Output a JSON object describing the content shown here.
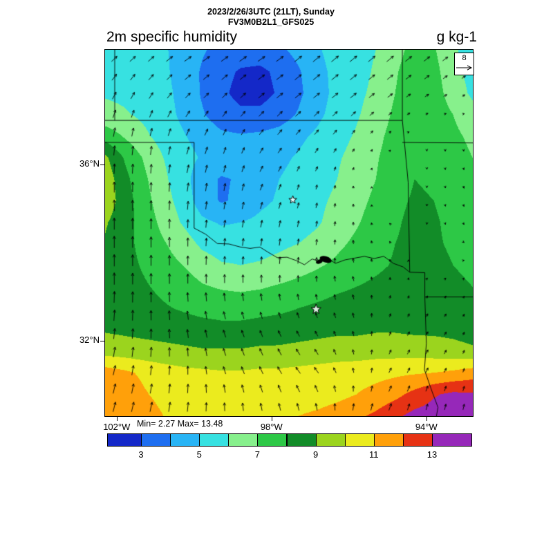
{
  "header": {
    "datetime_line": "2023/2/26/3UTC (21LT), Sunday",
    "model_line": "FV3M0B2L1_GFS025"
  },
  "titles": {
    "variable": "2m specific humidity",
    "units": "g kg-1"
  },
  "stats": {
    "minmax": "Min= 2.27 Max= 13.48",
    "min": 2.27,
    "max": 13.48
  },
  "reference_vector": {
    "label": "8"
  },
  "axes": {
    "lat_labels": [
      {
        "text": "36°N",
        "lat": 36
      },
      {
        "text": "32°N",
        "lat": 32
      }
    ],
    "lon_labels": [
      {
        "text": "102°W",
        "lon": -102
      },
      {
        "text": "98°W",
        "lon": -98
      },
      {
        "text": "94°W",
        "lon": -94
      }
    ]
  },
  "colorbar": {
    "tick_labels": [
      3,
      5,
      7,
      9,
      11,
      13
    ]
  },
  "chart_data": {
    "type": "heatmap",
    "title": "2m specific humidity",
    "units": "g kg-1",
    "valid_time": "2023/2/26/3UTC (21LT), Sunday",
    "model": "FV3M0B2L1_GFS025",
    "min": 2.27,
    "max": 13.48,
    "lon_range": [
      -102.3,
      -92.8
    ],
    "lat_range": [
      30.3,
      38.6
    ],
    "contour_levels": [
      3,
      4,
      5,
      6,
      7,
      8,
      9,
      10,
      11,
      12,
      13
    ],
    "palette": [
      "#1428C8",
      "#1E6EF0",
      "#28B4F5",
      "#37E1E1",
      "#87F08C",
      "#2DC846",
      "#128C28",
      "#9BD41E",
      "#EBEB1E",
      "#FFA00A",
      "#E63214",
      "#9628B9"
    ],
    "humidity_grid": {
      "nx": 20,
      "ny": 18,
      "lon_order": "west_to_east",
      "lat_order": "north_to_south",
      "values": [
        [
          5.5,
          5.5,
          5.4,
          5.1,
          4.7,
          4.1,
          3.7,
          3.5,
          3.5,
          3.8,
          4.3,
          4.9,
          5.4,
          5.7,
          6.0,
          6.7,
          7.3,
          7.1,
          6.2,
          5.4
        ],
        [
          5.7,
          5.6,
          5.5,
          5.2,
          4.6,
          3.9,
          3.3,
          2.9,
          2.8,
          3.2,
          3.9,
          4.7,
          5.3,
          5.7,
          6.1,
          6.9,
          7.5,
          7.3,
          6.4,
          5.6
        ],
        [
          5.9,
          5.8,
          5.6,
          5.3,
          4.7,
          3.9,
          3.2,
          2.7,
          2.7,
          3.1,
          3.8,
          4.6,
          5.3,
          5.8,
          6.2,
          7.0,
          7.6,
          7.4,
          6.6,
          5.8
        ],
        [
          6.3,
          6.1,
          5.8,
          5.4,
          4.8,
          4.1,
          3.5,
          3.2,
          3.2,
          3.5,
          4.1,
          4.8,
          5.4,
          5.9,
          6.4,
          7.2,
          7.7,
          7.5,
          7.0,
          6.4
        ],
        [
          7.6,
          6.9,
          6.2,
          5.6,
          5.1,
          4.6,
          4.2,
          4.1,
          4.2,
          4.4,
          4.8,
          5.2,
          5.7,
          6.1,
          6.7,
          7.4,
          7.8,
          7.6,
          7.2,
          6.8
        ],
        [
          9.2,
          7.9,
          6.9,
          6.0,
          5.4,
          4.9,
          4.6,
          4.5,
          4.6,
          4.8,
          5.1,
          5.5,
          5.9,
          6.3,
          6.9,
          7.5,
          7.9,
          7.8,
          7.4,
          7.0
        ],
        [
          9.6,
          8.3,
          7.2,
          6.2,
          5.4,
          4.4,
          3.9,
          4.1,
          4.7,
          5.0,
          5.3,
          5.6,
          6.0,
          6.5,
          7.0,
          7.6,
          8.0,
          7.9,
          7.5,
          7.2
        ],
        [
          9.6,
          8.5,
          7.4,
          6.4,
          5.6,
          4.5,
          3.9,
          4.2,
          4.8,
          5.1,
          5.4,
          5.8,
          6.2,
          6.7,
          7.2,
          7.8,
          8.1,
          8.0,
          7.7,
          7.4
        ],
        [
          9.1,
          8.4,
          7.6,
          6.7,
          5.9,
          5.2,
          4.9,
          5.0,
          5.2,
          5.4,
          5.6,
          5.9,
          6.4,
          6.9,
          7.4,
          7.9,
          8.2,
          8.1,
          7.8,
          7.5
        ],
        [
          8.9,
          8.3,
          7.7,
          7.1,
          6.5,
          5.8,
          5.5,
          5.5,
          5.6,
          5.8,
          6.0,
          6.3,
          6.8,
          7.2,
          7.6,
          8.0,
          8.2,
          8.1,
          7.9,
          7.6
        ],
        [
          8.7,
          8.3,
          7.9,
          7.4,
          7.0,
          6.5,
          6.1,
          6.0,
          6.1,
          6.3,
          6.6,
          6.9,
          7.2,
          7.5,
          7.8,
          8.1,
          8.3,
          8.2,
          8.0,
          7.8
        ],
        [
          8.6,
          8.3,
          8.1,
          7.8,
          7.5,
          7.1,
          6.9,
          6.8,
          6.9,
          7.1,
          7.3,
          7.5,
          7.8,
          8.0,
          8.2,
          8.4,
          8.5,
          8.4,
          8.2,
          8.0
        ],
        [
          8.7,
          8.5,
          8.3,
          8.1,
          7.9,
          7.7,
          7.6,
          7.6,
          7.7,
          7.8,
          8.0,
          8.2,
          8.4,
          8.5,
          8.6,
          8.7,
          8.7,
          8.6,
          8.5,
          8.3
        ],
        [
          8.9,
          8.8,
          8.7,
          8.6,
          8.5,
          8.4,
          8.3,
          8.3,
          8.4,
          8.5,
          8.6,
          8.7,
          8.8,
          8.8,
          8.9,
          8.9,
          8.8,
          8.8,
          8.7,
          8.5
        ],
        [
          9.6,
          9.5,
          9.4,
          9.3,
          9.2,
          9.1,
          9.1,
          9.1,
          9.2,
          9.2,
          9.3,
          9.4,
          9.5,
          9.5,
          9.6,
          9.6,
          9.6,
          9.5,
          9.4,
          9.2
        ],
        [
          11.5,
          11.2,
          10.8,
          10.5,
          10.3,
          10.2,
          10.1,
          10.1,
          10.2,
          10.2,
          10.3,
          10.4,
          10.5,
          10.6,
          10.7,
          10.8,
          10.9,
          11.0,
          11.2,
          11.5
        ],
        [
          12.0,
          11.7,
          11.1,
          10.7,
          10.4,
          10.2,
          10.1,
          10.1,
          10.2,
          10.3,
          10.4,
          10.5,
          10.7,
          11.0,
          11.3,
          11.7,
          12.3,
          12.9,
          13.2,
          13.1
        ],
        [
          11.8,
          12.0,
          11.5,
          11.0,
          10.8,
          10.7,
          10.6,
          10.7,
          10.8,
          10.9,
          11.0,
          11.2,
          11.5,
          11.8,
          12.2,
          12.8,
          13.3,
          13.45,
          13.45,
          13.4
        ]
      ]
    },
    "wind": {
      "reference": 8,
      "nx": 10,
      "ny": 9,
      "u": [
        [
          2.5,
          2.5,
          3,
          3,
          3,
          3,
          3,
          3,
          2.5,
          2
        ],
        [
          1.5,
          1.5,
          2,
          2,
          2.5,
          2.5,
          2.5,
          2,
          1.5,
          1
        ],
        [
          0.5,
          0.5,
          1,
          1,
          1.5,
          1.5,
          1,
          0.5,
          0,
          0
        ],
        [
          0,
          0,
          0.5,
          0.5,
          1,
          0.5,
          0,
          0,
          0,
          0.5
        ],
        [
          0,
          0,
          0,
          0.5,
          0.5,
          0.5,
          0,
          -0.5,
          0,
          0.5
        ],
        [
          0,
          0,
          0,
          0,
          0,
          0,
          -0.5,
          0,
          0.5,
          0.5
        ],
        [
          0.5,
          0,
          -0.5,
          -1,
          -1,
          -1,
          -0.5,
          0.5,
          1,
          0.5
        ],
        [
          1,
          0.5,
          0,
          -1,
          -1.5,
          -2,
          -0.5,
          1,
          1,
          0.5
        ],
        [
          1,
          1,
          0.5,
          0,
          -0.5,
          -0.5,
          0.5,
          1,
          0.5,
          0.5
        ]
      ],
      "v": [
        [
          2,
          2,
          2,
          2,
          2,
          2.5,
          2.5,
          2.5,
          2,
          1.5
        ],
        [
          3,
          2.5,
          2,
          2,
          2,
          2,
          2,
          1.5,
          1,
          0.5
        ],
        [
          4,
          3.5,
          3,
          2.5,
          2,
          2,
          1.5,
          0.5,
          -0.5,
          -0.5
        ],
        [
          4.5,
          4,
          3.5,
          3,
          2.5,
          2,
          1,
          0,
          -0.5,
          -1
        ],
        [
          5,
          4.5,
          3.5,
          3,
          3,
          2.5,
          1.5,
          0.5,
          -0.5,
          -0.5
        ],
        [
          5,
          4.5,
          4,
          3.5,
          3,
          2.5,
          2,
          1,
          0.5,
          0.5
        ],
        [
          4.5,
          4,
          3.5,
          3,
          2.5,
          2,
          2,
          1.5,
          1.5,
          1
        ],
        [
          4,
          4,
          3.5,
          3,
          3,
          2.5,
          2,
          2,
          2,
          1.5
        ],
        [
          4,
          4,
          4,
          3.5,
          3,
          3,
          3,
          3,
          2.5,
          2.5
        ]
      ]
    },
    "borders": [
      {
        "points": [
          [
            -102.3,
            37
          ],
          [
            -94.62,
            37
          ]
        ]
      },
      {
        "points": [
          [
            -102.05,
            38.6
          ],
          [
            -102.05,
            37
          ]
        ]
      },
      {
        "points": [
          [
            -102.3,
            36.5
          ],
          [
            -100.0,
            36.5
          ]
        ]
      },
      {
        "points": [
          [
            -100.0,
            36.5
          ],
          [
            -100.0,
            34.56
          ]
        ]
      },
      {
        "points": [
          [
            -100.0,
            34.56
          ],
          [
            -99.7,
            34.42
          ],
          [
            -99.4,
            34.21
          ],
          [
            -99.1,
            34.2
          ],
          [
            -98.8,
            34.13
          ],
          [
            -98.55,
            34.1
          ],
          [
            -98.3,
            34.13
          ],
          [
            -98.1,
            34.02
          ],
          [
            -97.85,
            33.89
          ],
          [
            -97.6,
            33.9
          ],
          [
            -97.35,
            33.82
          ],
          [
            -97.15,
            33.73
          ],
          [
            -96.95,
            33.86
          ],
          [
            -96.75,
            33.8
          ],
          [
            -96.55,
            33.88
          ],
          [
            -96.35,
            33.76
          ],
          [
            -96.1,
            33.84
          ],
          [
            -95.85,
            33.88
          ],
          [
            -95.6,
            33.92
          ],
          [
            -95.35,
            33.87
          ],
          [
            -95.1,
            33.92
          ],
          [
            -94.85,
            33.76
          ],
          [
            -94.6,
            33.68
          ],
          [
            -94.43,
            33.56
          ]
        ]
      },
      {
        "points": [
          [
            -94.62,
            37
          ],
          [
            -94.47,
            35.6
          ],
          [
            -94.43,
            33.56
          ]
        ]
      },
      {
        "points": [
          [
            -94.62,
            36.5
          ],
          [
            -92.8,
            36.49
          ]
        ]
      },
      {
        "points": [
          [
            -94.62,
            38.6
          ],
          [
            -94.62,
            37
          ]
        ]
      },
      {
        "points": [
          [
            -94.43,
            33.56
          ],
          [
            -94.04,
            33.55
          ],
          [
            -94.04,
            33.0
          ]
        ]
      },
      {
        "points": [
          [
            -94.04,
            33.0
          ],
          [
            -92.8,
            33.0
          ]
        ]
      },
      {
        "points": [
          [
            -94.04,
            33.0
          ],
          [
            -94.0,
            31.95
          ],
          [
            -94.05,
            31.35
          ],
          [
            -93.85,
            30.85
          ],
          [
            -93.7,
            30.5
          ],
          [
            -93.74,
            30.3
          ]
        ]
      }
    ],
    "lake": {
      "lon": -96.6,
      "lat": 33.85
    },
    "city_markers": [
      {
        "lon": -97.45,
        "lat": 35.2
      },
      {
        "lon": -96.85,
        "lat": 32.72
      }
    ]
  }
}
